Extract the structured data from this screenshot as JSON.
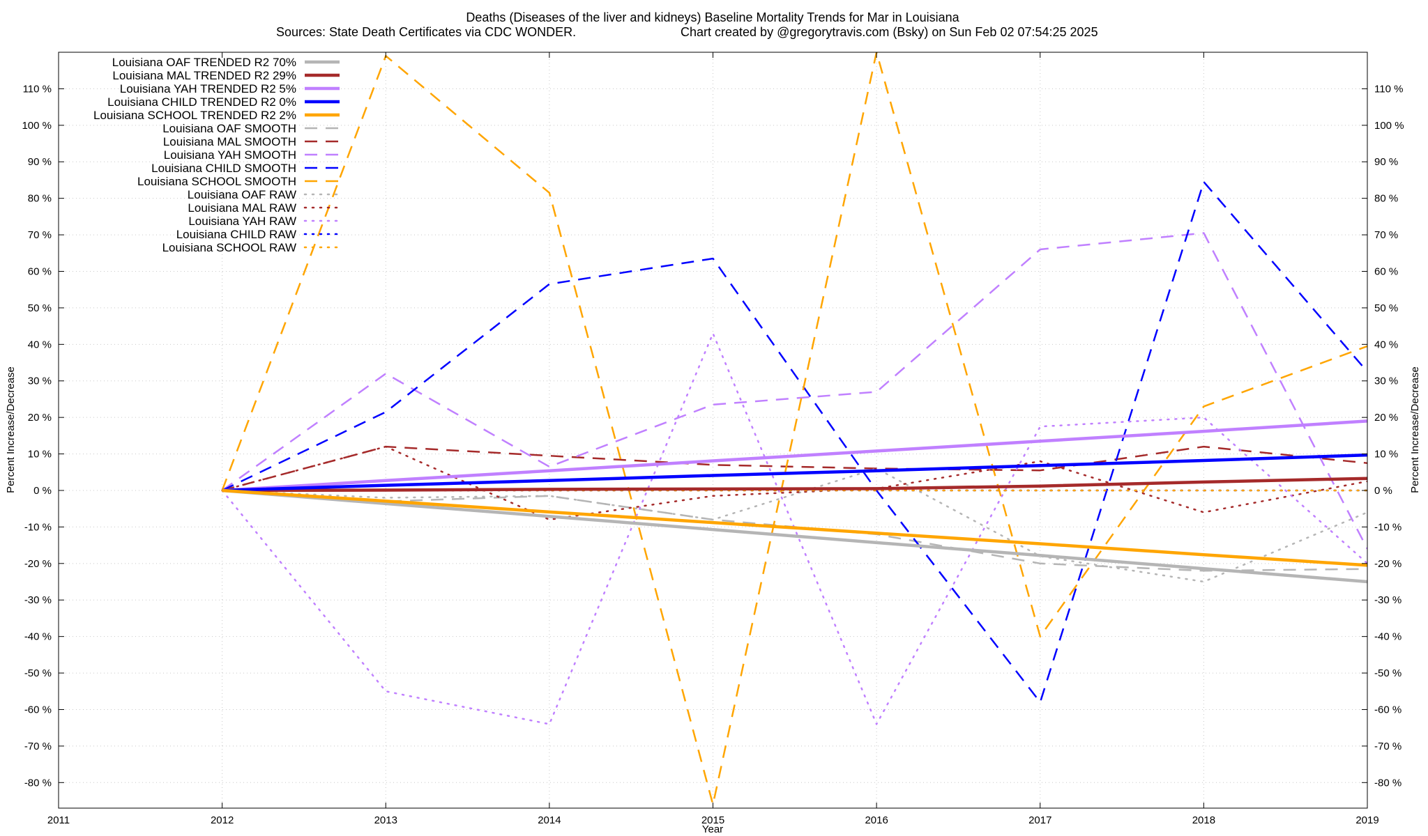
{
  "chart_data": {
    "type": "line",
    "title": "Deaths (Diseases of the liver and kidneys)  Baseline Mortality Trends for Mar in Louisiana",
    "subtitle_left": "Sources: State Death Certificates via CDC WONDER.",
    "subtitle_right": "Chart created by @gregorytravis.com (Bsky) on Sun Feb 02 07:54:25 2025",
    "xlabel": "Year",
    "ylabel": "Percent Increase/Decrease",
    "y2label": "Percent Increase/Decrease",
    "xlim": [
      2011,
      2019
    ],
    "ylim": [
      -87,
      120
    ],
    "x_ticks": [
      2011,
      2012,
      2013,
      2014,
      2015,
      2016,
      2017,
      2018,
      2019
    ],
    "x_tick_labels": [
      "2011",
      "2012",
      "2013",
      "2014",
      "2015",
      "2016",
      "2017",
      "2018",
      "2019"
    ],
    "y_ticks": [
      110,
      100,
      90,
      80,
      70,
      60,
      50,
      40,
      30,
      20,
      10,
      0,
      -10,
      -20,
      -30,
      -40,
      -50,
      -60,
      -70,
      -80
    ],
    "y_tick_labels": [
      "110 %",
      "100 %",
      "90 %",
      "80 %",
      "70 %",
      "60 %",
      "50 %",
      "40 %",
      "30 %",
      "20 %",
      "10 %",
      "0 %",
      "-10 %",
      "-20 %",
      "-30 %",
      "-40 %",
      "-50 %",
      "-60 %",
      "-70 %",
      "-80 %"
    ],
    "grid": true,
    "legend_position": "top-left",
    "x": [
      2012,
      2013,
      2014,
      2015,
      2016,
      2017,
      2018,
      2019
    ],
    "series": [
      {
        "name": "Louisiana OAF TRENDED R2  70%",
        "style": "solid",
        "width": 4.5,
        "color": "#b5b5b5",
        "values": [
          0,
          -3.6,
          -7.1,
          -10.7,
          -14.3,
          -17.8,
          -21.4,
          -25.0
        ]
      },
      {
        "name": "Louisiana MAL TRENDED R2  29%",
        "style": "solid",
        "width": 4.5,
        "color": "#a52a2a",
        "values": [
          0,
          0.1,
          0.3,
          0.4,
          0.5,
          1.2,
          2.3,
          3.3
        ]
      },
      {
        "name": "Louisiana YAH TRENDED R2   5%",
        "style": "solid",
        "width": 4.5,
        "color": "#c080ff",
        "values": [
          0,
          2.7,
          5.4,
          8.1,
          10.8,
          13.5,
          16.2,
          19.0
        ]
      },
      {
        "name": "Louisiana CHILD TRENDED R2   0%",
        "style": "solid",
        "width": 4.5,
        "color": "#0000ff",
        "values": [
          0,
          1.4,
          2.7,
          4.1,
          5.4,
          6.8,
          8.2,
          9.7
        ]
      },
      {
        "name": "Louisiana SCHOOL TRENDED R2   2%",
        "style": "solid",
        "width": 4.5,
        "color": "#ffa500",
        "values": [
          0,
          -2.9,
          -5.9,
          -8.8,
          -11.7,
          -14.6,
          -17.6,
          -20.5
        ]
      },
      {
        "name": "Louisiana OAF SMOOTH",
        "style": "dash",
        "width": 2.5,
        "color": "#b5b5b5",
        "values": [
          0,
          -3,
          -1.5,
          -8,
          -12,
          -20,
          -22,
          -21.5
        ]
      },
      {
        "name": "Louisiana MAL SMOOTH",
        "style": "dash",
        "width": 2.5,
        "color": "#a52a2a",
        "values": [
          0,
          12,
          9.5,
          7,
          6,
          5.5,
          12,
          7.5
        ]
      },
      {
        "name": "Louisiana YAH SMOOTH",
        "style": "dash",
        "width": 2.5,
        "color": "#c080ff",
        "values": [
          0,
          32,
          6.5,
          23.5,
          27,
          66,
          70.5,
          -16
        ]
      },
      {
        "name": "Louisiana CHILD SMOOTH",
        "style": "dash",
        "width": 2.5,
        "color": "#0000ff",
        "values": [
          0,
          21.5,
          56.5,
          63.5,
          0,
          -58,
          84.5,
          32.5
        ]
      },
      {
        "name": "Louisiana SCHOOL SMOOTH",
        "style": "dash",
        "width": 2.5,
        "color": "#ffa500",
        "values": [
          0,
          119,
          81.5,
          -86,
          120,
          -40,
          23,
          39.5
        ]
      },
      {
        "name": "Louisiana OAF RAW",
        "style": "dot",
        "width": 2.5,
        "color": "#b5b5b5",
        "values": [
          0,
          -2,
          -1.5,
          -8,
          6,
          -18,
          -25,
          -6
        ]
      },
      {
        "name": "Louisiana MAL RAW",
        "style": "dot",
        "width": 2.5,
        "color": "#a52a2a",
        "values": [
          0,
          12,
          -8,
          -1.5,
          0.5,
          8,
          -6,
          2.5
        ]
      },
      {
        "name": "Louisiana YAH RAW",
        "style": "dot",
        "width": 2.5,
        "color": "#c080ff",
        "values": [
          0,
          -55,
          -64,
          43,
          -64,
          17.5,
          20,
          -20
        ]
      },
      {
        "name": "Louisiana CHILD RAW",
        "style": "dot",
        "width": 2.5,
        "color": "#0000ff",
        "values": [
          0,
          0,
          0,
          0,
          0,
          0,
          0,
          0
        ]
      },
      {
        "name": "Louisiana SCHOOL RAW",
        "style": "dot",
        "width": 2.5,
        "color": "#ffa500",
        "values": [
          0,
          0,
          0,
          0,
          0,
          0,
          0,
          0
        ]
      }
    ]
  }
}
